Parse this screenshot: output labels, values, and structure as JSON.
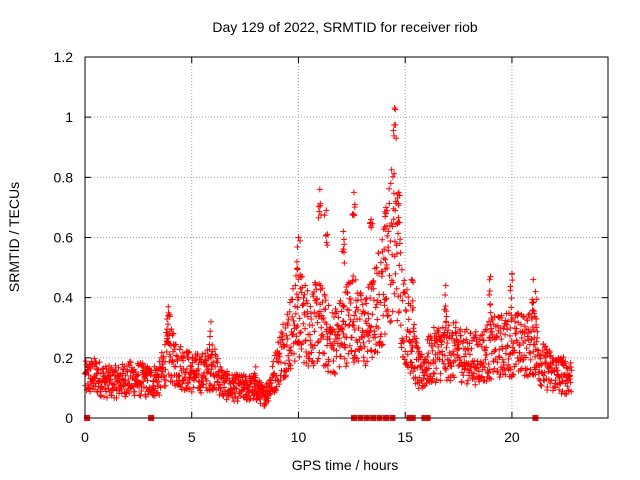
{
  "chart_data": {
    "type": "scatter",
    "title": "Day 129 of 2022, SRMTID for receiver riob",
    "xlabel": "GPS time / hours",
    "ylabel": "SRMTID / TECUs",
    "xlim": [
      0,
      24.5
    ],
    "ylim": [
      0,
      1.2
    ],
    "xticks": [
      0,
      5,
      10,
      15,
      20
    ],
    "xtick_labels": [
      "0",
      "5",
      "10",
      "15",
      "20"
    ],
    "yticks": [
      0,
      0.2,
      0.4,
      0.6,
      0.8,
      1.0,
      1.2
    ],
    "ytick_labels": [
      "0",
      "0.2",
      "0.4",
      "0.6",
      "0.8",
      "1",
      "1.2"
    ],
    "grid": true,
    "marker": "+",
    "series": [
      {
        "name": "SRMTID",
        "color": "#ff0000",
        "trend": [
          [
            0.0,
            0.13
          ],
          [
            0.5,
            0.14
          ],
          [
            1.0,
            0.12
          ],
          [
            1.5,
            0.12
          ],
          [
            2.0,
            0.13
          ],
          [
            2.5,
            0.13
          ],
          [
            3.0,
            0.12
          ],
          [
            3.5,
            0.13
          ],
          [
            3.9,
            0.22
          ],
          [
            4.3,
            0.18
          ],
          [
            5.0,
            0.15
          ],
          [
            5.5,
            0.15
          ],
          [
            6.0,
            0.17
          ],
          [
            6.5,
            0.11
          ],
          [
            7.0,
            0.1
          ],
          [
            7.5,
            0.1
          ],
          [
            8.0,
            0.1
          ],
          [
            8.4,
            0.07
          ],
          [
            8.8,
            0.13
          ],
          [
            9.2,
            0.22
          ],
          [
            9.6,
            0.28
          ],
          [
            10.0,
            0.35
          ],
          [
            10.5,
            0.3
          ],
          [
            11.0,
            0.32
          ],
          [
            11.5,
            0.25
          ],
          [
            12.0,
            0.28
          ],
          [
            12.5,
            0.35
          ],
          [
            13.0,
            0.28
          ],
          [
            13.5,
            0.33
          ],
          [
            14.0,
            0.45
          ],
          [
            14.3,
            0.58
          ],
          [
            14.6,
            0.58
          ],
          [
            14.9,
            0.35
          ],
          [
            15.3,
            0.25
          ],
          [
            15.7,
            0.14
          ],
          [
            16.0,
            0.18
          ],
          [
            16.5,
            0.22
          ],
          [
            17.0,
            0.22
          ],
          [
            17.5,
            0.22
          ],
          [
            18.0,
            0.2
          ],
          [
            18.5,
            0.2
          ],
          [
            19.0,
            0.23
          ],
          [
            19.5,
            0.24
          ],
          [
            20.0,
            0.25
          ],
          [
            20.5,
            0.24
          ],
          [
            21.0,
            0.25
          ],
          [
            21.5,
            0.17
          ],
          [
            22.0,
            0.15
          ],
          [
            22.5,
            0.14
          ],
          [
            22.8,
            0.14
          ]
        ],
        "peaks": [
          [
            3.9,
            0.37
          ],
          [
            5.9,
            0.32
          ],
          [
            8.0,
            0.17
          ],
          [
            10.0,
            0.6
          ],
          [
            11.0,
            0.76
          ],
          [
            11.3,
            0.69
          ],
          [
            12.1,
            0.62
          ],
          [
            12.6,
            0.75
          ],
          [
            13.4,
            0.66
          ],
          [
            14.1,
            0.7
          ],
          [
            14.5,
            1.03
          ],
          [
            14.7,
            0.75
          ],
          [
            15.3,
            0.46
          ],
          [
            16.9,
            0.44
          ],
          [
            19.0,
            0.47
          ],
          [
            20.0,
            0.48
          ],
          [
            21.0,
            0.46
          ],
          [
            21.1,
            0.42
          ]
        ]
      }
    ],
    "zero_markers_x": [
      0.1,
      3.1,
      12.6,
      12.9,
      13.2,
      13.5,
      13.8,
      14.1,
      14.4,
      15.2,
      15.35,
      15.9,
      16.05,
      21.1
    ]
  },
  "style": {
    "marker_color": "#ff0000",
    "grid_color": "#a0a0a0",
    "axis_color": "#000000"
  }
}
